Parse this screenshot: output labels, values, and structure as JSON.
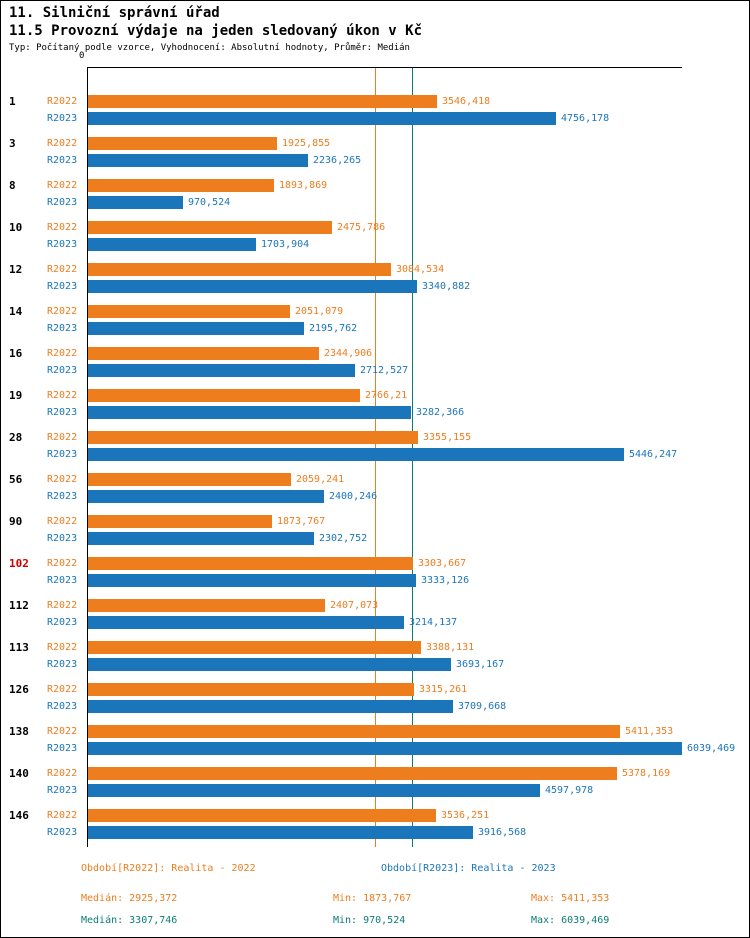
{
  "header": {
    "title": "11. Silniční správní úřad",
    "subtitle": "11.5 Provozní výdaje na jeden sledovaný úkon v Kč",
    "meta": "Typ: Počítaný podle vzorce, Vyhodnocení: Absolutní hodnoty, Průměr: Medián"
  },
  "chart_data": {
    "type": "bar",
    "orientation": "horizontal",
    "axis": {
      "zero_label": "0",
      "xlim": [
        0,
        6039.469
      ],
      "grid": "median-lines-only"
    },
    "categories": [
      "1",
      "3",
      "8",
      "10",
      "12",
      "14",
      "16",
      "19",
      "28",
      "56",
      "90",
      "102",
      "112",
      "113",
      "126",
      "138",
      "140",
      "146"
    ],
    "highlighted_category": "102",
    "highlight_color": "#cc0000",
    "category_color": "#000000",
    "series": [
      {
        "name": "R2022",
        "legend": "Období[R2022]: Realita - 2022",
        "color": "#ee7d1e",
        "median": 2925.372,
        "median_line_color": "#ee7d1e",
        "values": [
          3546.418,
          1925.855,
          1893.869,
          2475.786,
          3084.534,
          2051.079,
          2344.906,
          2766.21,
          3355.155,
          2059.241,
          1873.767,
          3303.667,
          2407.073,
          3388.131,
          3315.261,
          5411.353,
          5378.169,
          3536.251
        ],
        "value_labels": [
          "3546,418",
          "1925,855",
          "1893,869",
          "2475,786",
          "3084,534",
          "2051,079",
          "2344,906",
          "2766,21",
          "3355,155",
          "2059,241",
          "1873,767",
          "3303,667",
          "2407,073",
          "3388,131",
          "3315,261",
          "5411,353",
          "5378,169",
          "3536,251"
        ]
      },
      {
        "name": "R2023",
        "legend": "Období[R2023]: Realita - 2023",
        "color": "#1b75bb",
        "median": 3307.746,
        "median_line_color": "#0b7d75",
        "values": [
          4756.178,
          2236.265,
          970.524,
          1703.904,
          3340.882,
          2195.762,
          2712.527,
          3282.366,
          5446.247,
          2400.246,
          2302.752,
          3333.126,
          3214.137,
          3693.167,
          3709.668,
          6039.469,
          4597.978,
          3916.568
        ],
        "value_labels": [
          "4756,178",
          "2236,265",
          "970,524",
          "1703,904",
          "3340,882",
          "2195,762",
          "2712,527",
          "3282,366",
          "5446,247",
          "2400,246",
          "2302,752",
          "3333,126",
          "3214,137",
          "3693,167",
          "3709,668",
          "6039,469",
          "4597,978",
          "3916,568"
        ]
      }
    ]
  },
  "legend": {
    "r2022": "Období[R2022]: Realita - 2022",
    "r2023": "Období[R2023]: Realita - 2023"
  },
  "stats": {
    "r2022": {
      "color": "#ee7d1e",
      "median": "Medián: 2925,372",
      "min": "Min: 1873,767",
      "max": "Max: 5411,353"
    },
    "r2023": {
      "color": "#0b7d75",
      "median": "Medián: 3307,746",
      "min": "Min: 970,524",
      "max": "Max: 6039,469"
    }
  }
}
